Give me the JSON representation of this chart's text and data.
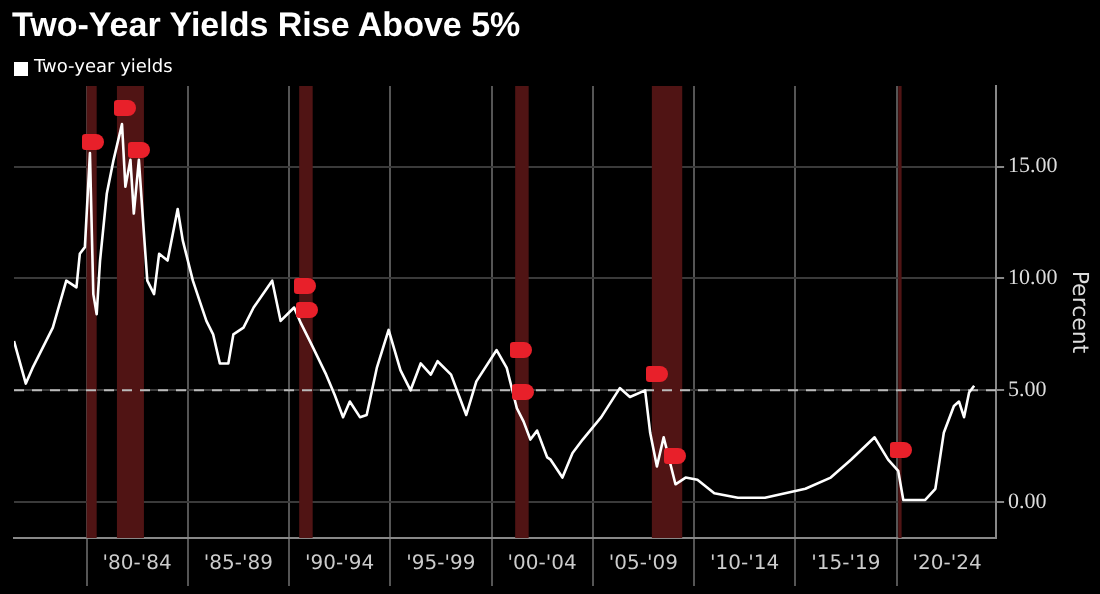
{
  "chart_data": {
    "type": "line",
    "title": "Two-Year Yields Rise Above 5%",
    "ylabel": "Percent",
    "legend": "top left",
    "grid": true,
    "marker": "none",
    "xlim": [
      "1976-06",
      "2024-12"
    ],
    "ylim": [
      -1.6,
      18.6
    ],
    "xticks": [
      {
        "value": "1980-01",
        "label": null
      },
      {
        "value": "1982-07",
        "label": "'80-'84"
      },
      {
        "value": "1985-01",
        "label": null
      },
      {
        "value": "1987-07",
        "label": "'85-'89"
      },
      {
        "value": "1990-01",
        "label": null
      },
      {
        "value": "1992-07",
        "label": "'90-'94"
      },
      {
        "value": "1995-01",
        "label": null
      },
      {
        "value": "1997-07",
        "label": "'95-'99"
      },
      {
        "value": "2000-01",
        "label": null
      },
      {
        "value": "2002-07",
        "label": "'00-'04"
      },
      {
        "value": "2005-01",
        "label": null
      },
      {
        "value": "2007-07",
        "label": "'05-'09"
      },
      {
        "value": "2010-01",
        "label": null
      },
      {
        "value": "2012-07",
        "label": "'10-'14"
      },
      {
        "value": "2015-01",
        "label": null
      },
      {
        "value": "2017-07",
        "label": "'15-'19"
      },
      {
        "value": "2020-01",
        "label": null
      },
      {
        "value": "2022-07",
        "label": "'20-'24"
      }
    ],
    "yticks": [
      {
        "value": 0,
        "label": "0.00"
      },
      {
        "value": 5,
        "label": "5.00"
      },
      {
        "value": 10,
        "label": "10.00"
      },
      {
        "value": 15,
        "label": "15.00"
      }
    ],
    "ref_lines": [
      {
        "axis": "y",
        "value": 5,
        "color": "#bbbbbb",
        "line_style": "dashed"
      }
    ],
    "bands": [
      {
        "axis": "x",
        "from": "1980-01",
        "to": "1980-07",
        "color": "#501414"
      },
      {
        "axis": "x",
        "from": "1981-07",
        "to": "1982-11",
        "color": "#501414"
      },
      {
        "axis": "x",
        "from": "1990-07",
        "to": "1991-03",
        "color": "#501414"
      },
      {
        "axis": "x",
        "from": "2001-03",
        "to": "2001-11",
        "color": "#501414"
      },
      {
        "axis": "x",
        "from": "2007-12",
        "to": "2009-06",
        "color": "#501414"
      },
      {
        "axis": "x",
        "from": "2020-02",
        "to": "2020-04",
        "color": "#501414"
      }
    ],
    "series": [
      {
        "name": "Two-year yields",
        "color": "#ffffff",
        "line_style": "solid",
        "x": [
          "1976-06",
          "1977-01",
          "1977-05",
          "1978-05",
          "1979-01",
          "1979-07",
          "1979-09",
          "1979-12",
          "1980-03",
          "1980-05",
          "1980-07",
          "1980-09",
          "1981-01",
          "1981-05",
          "1981-10",
          "1981-12",
          "1982-03",
          "1982-05",
          "1982-08",
          "1982-11",
          "1983-01",
          "1983-05",
          "1983-08",
          "1984-01",
          "1984-07",
          "1984-10",
          "1985-04",
          "1985-08",
          "1985-12",
          "1986-04",
          "1986-08",
          "1987-01",
          "1987-04",
          "1987-10",
          "1988-04",
          "1989-03",
          "1989-08",
          "1990-04",
          "1990-08",
          "1991-02",
          "1991-11",
          "1992-04",
          "1992-09",
          "1993-01",
          "1993-07",
          "1993-11",
          "1994-05",
          "1994-12",
          "1995-07",
          "1996-01",
          "1996-07",
          "1997-01",
          "1997-05",
          "1998-01",
          "1998-10",
          "1999-04",
          "2000-04",
          "2000-10",
          "2001-04",
          "2001-08",
          "2001-12",
          "2002-04",
          "2002-10",
          "2002-12",
          "2003-07",
          "2004-01",
          "2004-07",
          "2005-06",
          "2006-05",
          "2006-11",
          "2007-08",
          "2007-11",
          "2008-03",
          "2008-07",
          "2009-02",
          "2009-08",
          "2010-03",
          "2011-01",
          "2012-03",
          "2013-07",
          "2014-07",
          "2015-07",
          "2016-10",
          "2017-10",
          "2018-12",
          "2019-08",
          "2020-02",
          "2020-05",
          "2021-06",
          "2021-12",
          "2022-05",
          "2022-11",
          "2023-02",
          "2023-05",
          "2023-08",
          "2023-11"
        ],
        "values": [
          7.2,
          5.3,
          6.0,
          7.8,
          9.9,
          9.6,
          11.1,
          11.4,
          15.6,
          9.3,
          8.4,
          10.8,
          13.8,
          15.3,
          16.9,
          14.1,
          15.3,
          12.9,
          15.3,
          12.0,
          9.9,
          9.3,
          11.1,
          10.8,
          13.1,
          11.7,
          9.9,
          9.0,
          8.1,
          7.5,
          6.2,
          6.2,
          7.5,
          7.8,
          8.7,
          9.9,
          8.1,
          8.7,
          8.0,
          7.1,
          5.7,
          4.8,
          3.8,
          4.5,
          3.8,
          3.9,
          6.0,
          7.7,
          5.9,
          5.0,
          6.2,
          5.7,
          6.3,
          5.7,
          3.9,
          5.4,
          6.8,
          6.0,
          4.2,
          3.6,
          2.8,
          3.2,
          2.0,
          1.9,
          1.1,
          2.2,
          2.8,
          3.8,
          5.1,
          4.7,
          5.0,
          3.1,
          1.6,
          2.9,
          0.8,
          1.1,
          1.0,
          0.4,
          0.2,
          0.2,
          0.4,
          0.6,
          1.1,
          1.9,
          2.9,
          1.9,
          1.4,
          0.1,
          0.1,
          0.6,
          3.1,
          4.3,
          4.5,
          3.8,
          4.9,
          5.2
        ]
      }
    ]
  }
}
